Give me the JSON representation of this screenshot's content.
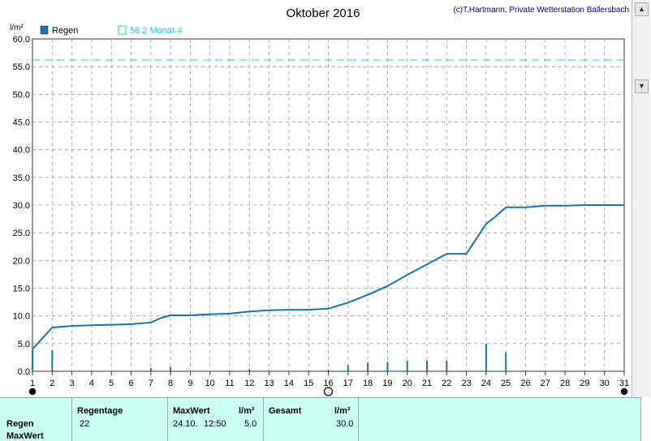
{
  "chart_data": {
    "type": "line",
    "title": "Oktober 2016",
    "credit": "(c)T.Hartmann, Private Wetterstation Ballersbach",
    "ylabel": "l/m²",
    "ylim": [
      0,
      60
    ],
    "yticks": [
      "0.0",
      "5.0",
      "10.0",
      "15.0",
      "20.0",
      "25.0",
      "30.0",
      "35.0",
      "40.0",
      "45.0",
      "50.0",
      "55.0",
      "60.0"
    ],
    "xticks": [
      "1",
      "2",
      "3",
      "4",
      "5",
      "6",
      "7",
      "8",
      "9",
      "10",
      "11",
      "12",
      "13",
      "14",
      "15",
      "16",
      "17",
      "18",
      "19",
      "20",
      "21",
      "22",
      "23",
      "24",
      "25",
      "26",
      "27",
      "28",
      "29",
      "30",
      "31"
    ],
    "xlim": [
      1,
      31
    ],
    "grid": true,
    "legend": {
      "series": "Regen",
      "reference": "56.2 Monat-#"
    },
    "colors": {
      "line": "#1477b0",
      "bars": "#1477b0",
      "reference": "#22cfcf",
      "grid": "#999999"
    },
    "reference_value": 56.2,
    "cumulative": {
      "x": [
        1,
        2,
        3,
        4,
        5,
        6,
        7,
        7.5,
        8,
        9,
        10,
        11,
        12,
        13,
        14,
        15,
        16,
        17,
        18,
        19,
        20,
        21,
        22,
        23,
        24,
        24.4,
        25,
        26,
        27,
        28,
        29,
        30,
        31
      ],
      "y": [
        4.0,
        7.9,
        8.2,
        8.3,
        8.4,
        8.5,
        8.8,
        9.6,
        10.1,
        10.1,
        10.3,
        10.4,
        10.8,
        11.0,
        11.1,
        11.1,
        11.3,
        12.4,
        13.8,
        15.4,
        17.4,
        19.3,
        21.2,
        21.2,
        26.6,
        27.7,
        29.6,
        29.6,
        29.9,
        29.9,
        30.0,
        30.0,
        30.0
      ]
    },
    "daily": {
      "x": [
        1,
        2,
        7,
        8,
        12,
        16,
        17,
        18,
        19,
        20,
        21,
        22,
        24,
        25
      ],
      "y": [
        3.9,
        3.8,
        0.6,
        0.8,
        0.4,
        0.3,
        1.1,
        1.6,
        1.7,
        1.9,
        1.9,
        1.9,
        5.0,
        3.4
      ]
    },
    "markers": [
      {
        "x": 1,
        "symbol": "full-moon"
      },
      {
        "x": 16,
        "symbol": "new-moon"
      },
      {
        "x": 31,
        "symbol": "full-moon"
      }
    ]
  },
  "table": {
    "row_labels": [
      "Regen",
      "MaxWert"
    ],
    "headers": {
      "regentage": "Regentage",
      "maxwert": "MaxWert",
      "unit1": "l/m²",
      "gesamt": "Gesamt",
      "unit2": "l/m²"
    },
    "values": {
      "regentage": "22",
      "max_date": "24.10.",
      "max_time": "12:50",
      "max_value": "5.0",
      "gesamt": "30.0"
    }
  },
  "scrollbar": {
    "up": "▲",
    "down": "▼"
  }
}
